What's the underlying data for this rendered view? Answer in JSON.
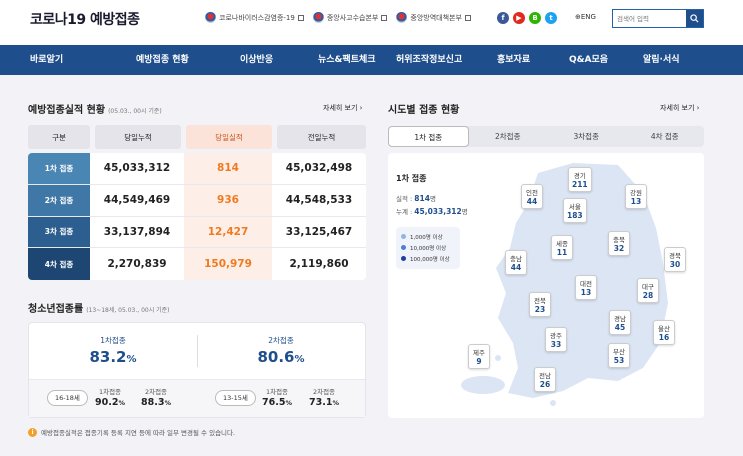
{
  "header": {
    "logo": "코로나19 예방접종",
    "links": [
      "코로나바이러스감염증-19",
      "중앙사고수습본부",
      "중앙방역대책본부"
    ],
    "social": [
      "f",
      "▶",
      "B",
      "t"
    ],
    "lang": "⊕ENG",
    "search_placeholder": "검색어 입력"
  },
  "nav": [
    "바로알기",
    "예방접종 현황",
    "이상반응",
    "뉴스&팩트체크",
    "허위조작정보신고",
    "홍보자료",
    "Q&A모음",
    "알림·서식"
  ],
  "vaccination": {
    "title": "예방접종실적 현황",
    "date_note": "(05.03., 00시 기준)",
    "more": "자세히 보기 ›",
    "headers": [
      "구분",
      "당일누적",
      "당일실적",
      "전일누적"
    ],
    "rows": [
      {
        "label": "1차 접종",
        "cum": "45,033,312",
        "today": "814",
        "prev": "45,032,498"
      },
      {
        "label": "2차 접종",
        "cum": "44,549,469",
        "today": "936",
        "prev": "44,548,533"
      },
      {
        "label": "3차 접종",
        "cum": "33,137,894",
        "today": "12,427",
        "prev": "33,125,467"
      },
      {
        "label": "4차 접종",
        "cum": "2,270,839",
        "today": "150,979",
        "prev": "2,119,860"
      }
    ]
  },
  "youth": {
    "title": "청소년접종률",
    "date_note": "(13~18세, 05.03., 00시 기준)",
    "first_label": "1차접종",
    "first_value": "83.2",
    "pct": "%",
    "second_label": "2차접종",
    "second_value": "80.6",
    "group_a": {
      "badge": "16-18세",
      "l1": "1차접종",
      "v1": "90.2",
      "l2": "2차접종",
      "v2": "88.3"
    },
    "group_b": {
      "badge": "13-15세",
      "l1": "1차접종",
      "v1": "76.5",
      "l2": "2차접종",
      "v2": "73.1"
    }
  },
  "note": "예방접종실적은 접종기록 등록 지연 등에 따라 일부 변경될 수 있습니다.",
  "regional": {
    "title": "시도별 접종 현황",
    "more": "자세히 보기 ›",
    "tabs": [
      "1차 접종",
      "2차접종",
      "3차접종",
      "4차 접종"
    ],
    "info_title": "1차 접종",
    "perf_label": "실적 :",
    "perf_value": "814",
    "perf_unit": "명",
    "cum_label": "누계 :",
    "cum_value": "45,033,312",
    "cum_unit": "명",
    "legend": [
      "1,000명 이상",
      "10,000명 이상",
      "100,000명 이상"
    ],
    "legend_colors": [
      "#8fb5e6",
      "#4f7fd0",
      "#1f3f9e"
    ],
    "regions": [
      {
        "name": "경기",
        "value": "211"
      },
      {
        "name": "인천",
        "value": "44"
      },
      {
        "name": "서울",
        "value": "183"
      },
      {
        "name": "강원",
        "value": "13"
      },
      {
        "name": "세종",
        "value": "11"
      },
      {
        "name": "충북",
        "value": "32"
      },
      {
        "name": "충남",
        "value": "44"
      },
      {
        "name": "경북",
        "value": "30"
      },
      {
        "name": "대전",
        "value": "13"
      },
      {
        "name": "대구",
        "value": "28"
      },
      {
        "name": "전북",
        "value": "23"
      },
      {
        "name": "경남",
        "value": "45"
      },
      {
        "name": "울산",
        "value": "16"
      },
      {
        "name": "광주",
        "value": "33"
      },
      {
        "name": "부산",
        "value": "53"
      },
      {
        "name": "제주",
        "value": "9"
      },
      {
        "name": "전남",
        "value": "26"
      }
    ]
  },
  "colors": {
    "primary": "#1f4e8c",
    "row_heads": [
      "#4a86b3",
      "#3f78a6",
      "#2c5f8f",
      "#1d4772"
    ],
    "today": "#f07b1f"
  }
}
